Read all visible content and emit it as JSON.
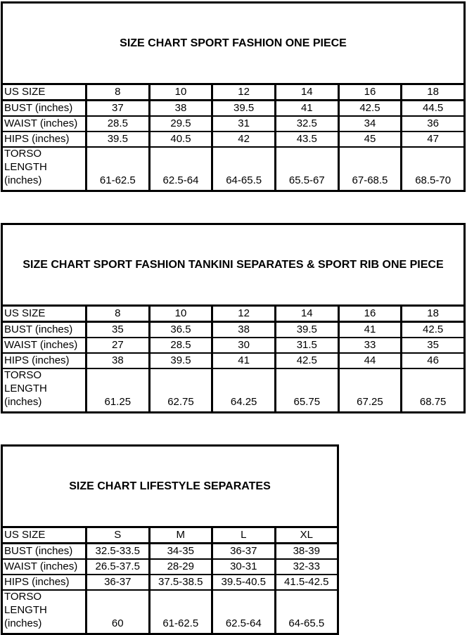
{
  "page": {
    "background_color": "#ffffff",
    "border_color": "#000000",
    "text_color": "#000000"
  },
  "tables": [
    {
      "title": "SIZE CHART SPORT FASHION ONE PIECE",
      "header": [
        "US SIZE",
        "8",
        "10",
        "12",
        "14",
        "16",
        "18"
      ],
      "rows": [
        {
          "label": "BUST (inches)",
          "values": [
            "37",
            "38",
            "39.5",
            "41",
            "42.5",
            "44.5"
          ]
        },
        {
          "label": "WAIST (inches)",
          "values": [
            "28.5",
            "29.5",
            "31",
            "32.5",
            "34",
            "36"
          ]
        },
        {
          "label": "HIPS (inches)",
          "values": [
            "39.5",
            "40.5",
            "42",
            "43.5",
            "45",
            "47"
          ]
        },
        {
          "label": "TORSO\nLENGTH\n(inches)",
          "values": [
            "61-62.5",
            "62.5-64",
            "64-65.5",
            "65.5-67",
            "67-68.5",
            "68.5-70"
          ]
        }
      ]
    },
    {
      "title": "SIZE CHART SPORT FASHION TANKINI SEPARATES & SPORT RIB ONE PIECE",
      "header": [
        "US SIZE",
        "8",
        "10",
        "12",
        "14",
        "16",
        "18"
      ],
      "rows": [
        {
          "label": "BUST (inches)",
          "values": [
            "35",
            "36.5",
            "38",
            "39.5",
            "41",
            "42.5"
          ]
        },
        {
          "label": "WAIST (inches)",
          "values": [
            "27",
            "28.5",
            "30",
            "31.5",
            "33",
            "35"
          ]
        },
        {
          "label": "HIPS (inches)",
          "values": [
            "38",
            "39.5",
            "41",
            "42.5",
            "44",
            "46"
          ]
        },
        {
          "label": "TORSO\nLENGTH\n(inches)",
          "values": [
            "61.25",
            "62.75",
            "64.25",
            "65.75",
            "67.25",
            "68.75"
          ]
        }
      ]
    },
    {
      "title": "SIZE CHART LIFESTYLE SEPARATES",
      "header": [
        "US SIZE",
        "S",
        "M",
        "L",
        "XL"
      ],
      "rows": [
        {
          "label": "BUST (inches)",
          "values": [
            "32.5-33.5",
            "34-35",
            "36-37",
            "38-39"
          ]
        },
        {
          "label": "WAIST (inches)",
          "values": [
            "26.5-37.5",
            "28-29",
            "30-31",
            "32-33"
          ]
        },
        {
          "label": "HIPS (inches)",
          "values": [
            "36-37",
            "37.5-38.5",
            "39.5-40.5",
            "41.5-42.5"
          ]
        },
        {
          "label": "TORSO\nLENGTH\n(inches)",
          "values": [
            "60",
            "61-62.5",
            "62.5-64",
            "64-65.5"
          ]
        }
      ]
    }
  ]
}
